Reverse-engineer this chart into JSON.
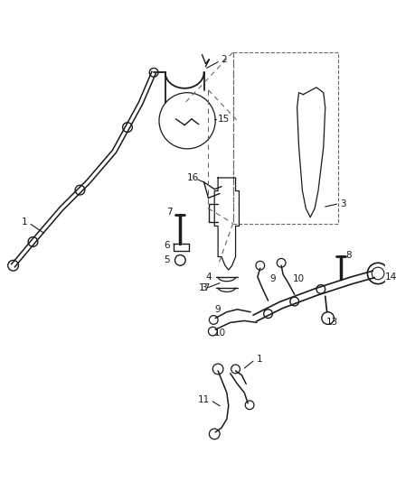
{
  "bg_color": "#ffffff",
  "lc": "#1a1a1a",
  "lc_dash": "#666666",
  "figsize": [
    4.38,
    5.33
  ],
  "dpi": 100,
  "xlim": [
    0,
    438
  ],
  "ylim": [
    0,
    533
  ]
}
